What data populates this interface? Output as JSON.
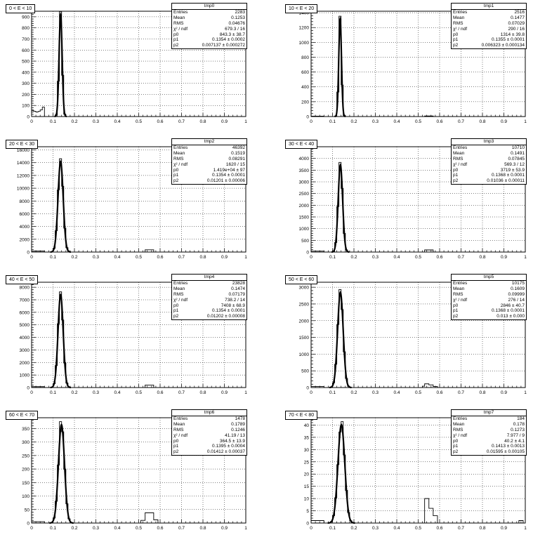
{
  "footer_text": "",
  "chart_data": [
    {
      "type": "bar",
      "title": "0 < E < 10",
      "hist_name": "tmp0",
      "xlim": [
        0,
        1
      ],
      "ylim": [
        0,
        950
      ],
      "yticks": [
        0,
        100,
        200,
        300,
        400,
        500,
        600,
        700,
        800,
        900
      ],
      "peak": 920,
      "mu": 0.1354,
      "sigma": 0.00714,
      "low": [
        55,
        48,
        40,
        46,
        60,
        85
      ],
      "side": [],
      "stats": [
        [
          "Entries",
          "2283"
        ],
        [
          "Mean",
          "0.1253"
        ],
        [
          "RMS",
          "0.04676"
        ],
        [
          "χ² / ndf",
          "679.3 / 16"
        ],
        [
          "p0",
          "843.3 ± 38.7"
        ],
        [
          "p1",
          "0.1354 ± 0.0002"
        ],
        [
          "p2",
          "0.007137 ± 0.000272"
        ]
      ]
    },
    {
      "type": "bar",
      "title": "10 < E < 20",
      "hist_name": "tmp1",
      "xlim": [
        0,
        1
      ],
      "ylim": [
        0,
        1420
      ],
      "yticks": [
        0,
        200,
        400,
        600,
        800,
        1000,
        1200,
        1400
      ],
      "peak": 1314,
      "mu": 0.1355,
      "sigma": 0.00632,
      "low": [
        5,
        5,
        5,
        5,
        5,
        5
      ],
      "side": [
        [
          0.53,
          0.57,
          8
        ]
      ],
      "stats": [
        [
          "Entries",
          "2516"
        ],
        [
          "Mean",
          "0.1477"
        ],
        [
          "RMS",
          "0.07029"
        ],
        [
          "χ² / ndf",
          "290 / 16"
        ],
        [
          "p0",
          "1314 ± 39.8"
        ],
        [
          "p1",
          "0.1355 ± 0.0001"
        ],
        [
          "p2",
          "0.006323 ± 0.000134"
        ]
      ]
    },
    {
      "type": "bar",
      "title": "20 < E < 30",
      "hist_name": "tmp2",
      "xlim": [
        0,
        1
      ],
      "ylim": [
        0,
        16500
      ],
      "yticks": [
        0,
        2000,
        4000,
        6000,
        8000,
        10000,
        12000,
        14000,
        16000
      ],
      "peak": 14190,
      "mu": 0.1354,
      "sigma": 0.01201,
      "low": [
        150,
        150,
        150,
        150,
        150,
        150
      ],
      "side": [
        [
          0.53,
          0.57,
          350
        ]
      ],
      "stats": [
        [
          "Entries",
          "46392"
        ],
        [
          "Mean",
          "0.1519"
        ],
        [
          "RMS",
          "0.08291"
        ],
        [
          "χ² / ndf",
          "1620 / 15"
        ],
        [
          "p0",
          "1.419e+04 ± 97"
        ],
        [
          "p1",
          "0.1354 ± 0.0001"
        ],
        [
          "p2",
          "0.01201 ± 0.00006"
        ]
      ]
    },
    {
      "type": "bar",
      "title": "30 < E < 40",
      "hist_name": "tmp3",
      "xlim": [
        0,
        1
      ],
      "ylim": [
        0,
        4500
      ],
      "yticks": [
        0,
        500,
        1000,
        1500,
        2000,
        2500,
        3000,
        3500,
        4000,
        4500
      ],
      "peak": 3719,
      "mu": 0.1368,
      "sigma": 0.01036,
      "low": [
        40,
        40,
        40,
        40,
        40,
        40
      ],
      "side": [
        [
          0.53,
          0.57,
          90
        ]
      ],
      "stats": [
        [
          "Entries",
          "10710"
        ],
        [
          "Mean",
          "0.1491"
        ],
        [
          "RMS",
          "0.07845"
        ],
        [
          "χ² / ndf",
          "569.3 / 12"
        ],
        [
          "p0",
          "3719 ± 53.9"
        ],
        [
          "p1",
          "0.1368 ± 0.0001"
        ],
        [
          "p2",
          "0.01036 ± 0.00011"
        ]
      ]
    },
    {
      "type": "bar",
      "title": "40 < E < 50",
      "hist_name": "tmp4",
      "xlim": [
        0,
        1
      ],
      "ylim": [
        0,
        8400
      ],
      "yticks": [
        0,
        1000,
        2000,
        3000,
        4000,
        5000,
        6000,
        7000,
        8000
      ],
      "peak": 7408,
      "mu": 0.1354,
      "sigma": 0.01202,
      "low": [
        70,
        70,
        70,
        70,
        70,
        70
      ],
      "side": [
        [
          0.53,
          0.57,
          200
        ]
      ],
      "stats": [
        [
          "Entries",
          "23828"
        ],
        [
          "Mean",
          "0.1474"
        ],
        [
          "RMS",
          "0.07179"
        ],
        [
          "χ² / ndf",
          "738.2 / 14"
        ],
        [
          "p0",
          "7408 ± 68.9"
        ],
        [
          "p1",
          "0.1354 ± 0.0001"
        ],
        [
          "p2",
          "0.01202 ± 0.00008"
        ]
      ]
    },
    {
      "type": "bar",
      "title": "50 < E < 60",
      "hist_name": "tmp5",
      "xlim": [
        0,
        1
      ],
      "ylim": [
        0,
        3150
      ],
      "yticks": [
        0,
        500,
        1000,
        1500,
        2000,
        2500,
        3000
      ],
      "peak": 2846,
      "mu": 0.1368,
      "sigma": 0.013,
      "low": [
        30,
        30,
        30,
        30,
        30,
        30
      ],
      "side": [
        [
          0.52,
          0.53,
          40
        ],
        [
          0.53,
          0.55,
          110
        ],
        [
          0.55,
          0.57,
          80
        ],
        [
          0.57,
          0.59,
          30
        ]
      ],
      "stats": [
        [
          "Entries",
          "10175"
        ],
        [
          "Mean",
          "0.1609"
        ],
        [
          "RMS",
          "0.09999"
        ],
        [
          "χ² / ndf",
          "276 / 14"
        ],
        [
          "p0",
          "2846 ± 40.7"
        ],
        [
          "p1",
          "0.1368 ± 0.0001"
        ],
        [
          "p2",
          "0.013 ± 0.000"
        ]
      ]
    },
    {
      "type": "bar",
      "title": "60 < E < 70",
      "hist_name": "tmp6",
      "xlim": [
        0,
        1
      ],
      "ylim": [
        0,
        390
      ],
      "yticks": [
        0,
        50,
        100,
        150,
        200,
        250,
        300,
        350
      ],
      "peak": 364.5,
      "mu": 0.1395,
      "sigma": 0.01412,
      "low": [
        5,
        5,
        5,
        5,
        5,
        5
      ],
      "side": [
        [
          0.51,
          0.53,
          10
        ],
        [
          0.53,
          0.57,
          38
        ],
        [
          0.57,
          0.59,
          12
        ]
      ],
      "stats": [
        [
          "Entries",
          "1478"
        ],
        [
          "Mean",
          "0.1789"
        ],
        [
          "RMS",
          "0.1246"
        ],
        [
          "χ² / ndf",
          "41.19 / 13"
        ],
        [
          "p0",
          "364.5 ± 13.9"
        ],
        [
          "p1",
          "0.1395 ± 0.0004"
        ],
        [
          "p2",
          "0.01412 ± 0.00037"
        ]
      ]
    },
    {
      "type": "bar",
      "title": "70 < E < 80",
      "hist_name": "tmp7",
      "xlim": [
        0,
        1
      ],
      "ylim": [
        0,
        43
      ],
      "yticks": [
        0,
        5,
        10,
        15,
        20,
        25,
        30,
        35,
        40
      ],
      "peak": 40.2,
      "mu": 0.1413,
      "sigma": 0.01595,
      "low": [
        1,
        1,
        1,
        1,
        1,
        1
      ],
      "side": [
        [
          0.53,
          0.55,
          10
        ],
        [
          0.55,
          0.57,
          6
        ],
        [
          0.57,
          0.59,
          3
        ],
        [
          0.97,
          0.99,
          1
        ]
      ],
      "stats": [
        [
          "Entries",
          "184"
        ],
        [
          "Mean",
          "0.178"
        ],
        [
          "RMS",
          "0.1273"
        ],
        [
          "χ² / ndf",
          "7.977 / 9"
        ],
        [
          "p0",
          "40.2 ± 4.1"
        ],
        [
          "p1",
          "0.1413 ± 0.0013"
        ],
        [
          "p2",
          "0.01595 ± 0.00105"
        ]
      ]
    }
  ]
}
